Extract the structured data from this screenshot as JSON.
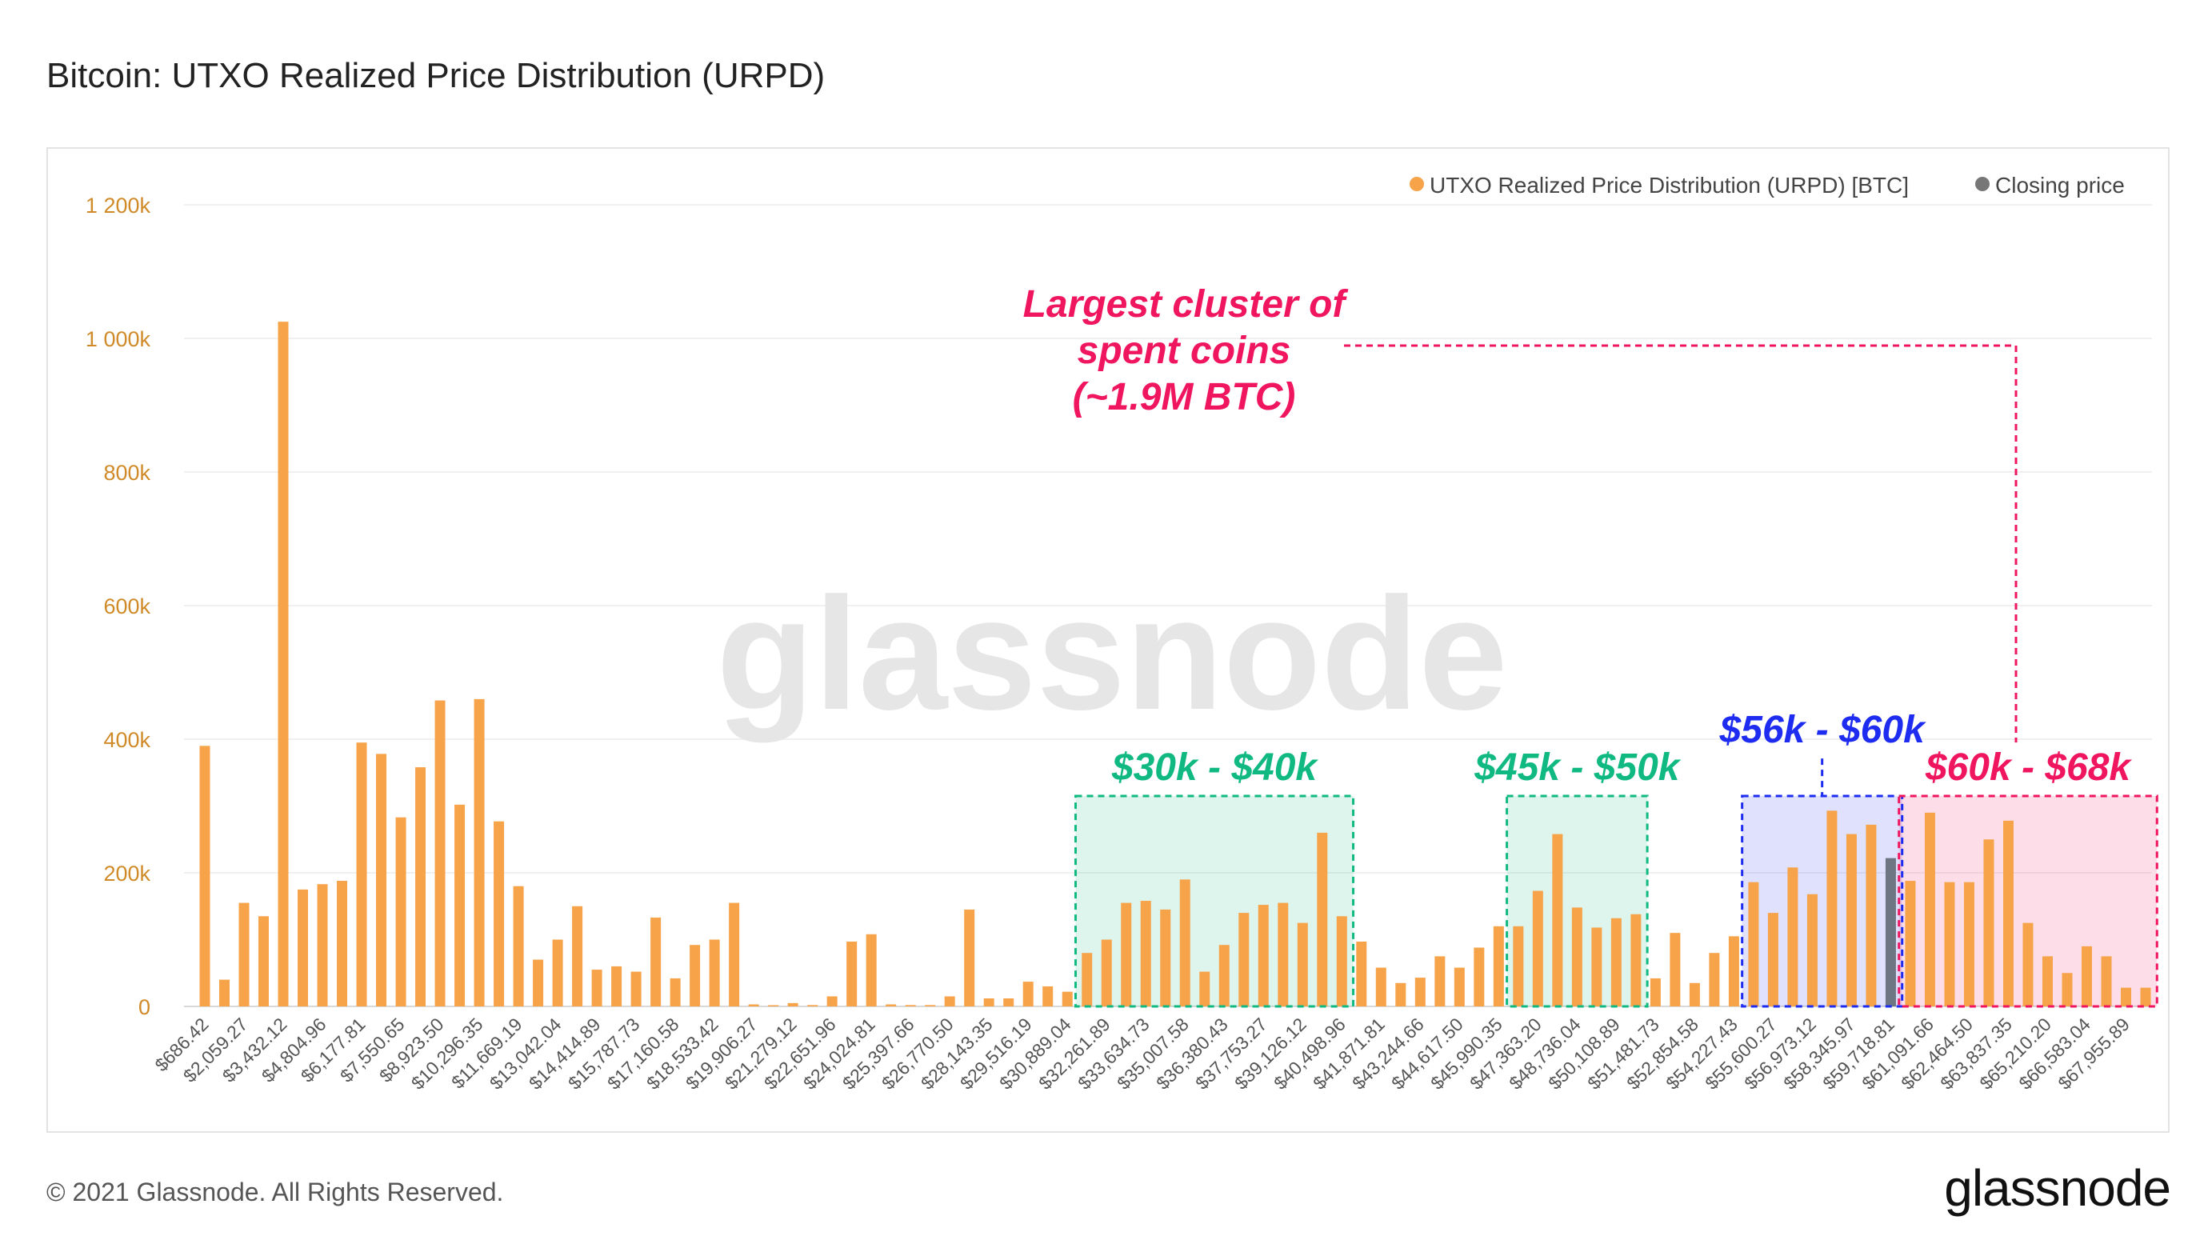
{
  "page": {
    "title": "Bitcoin: UTXO Realized Price Distribution (URPD)",
    "copyright": "© 2021 Glassnode. All Rights Reserved.",
    "logo_text": "glassnode",
    "watermark_text": "glassnode"
  },
  "colors": {
    "bar": "#f7a34a",
    "closing": "#6e7583",
    "axis_text": "#d08a28",
    "green": "#10b981",
    "blue": "#1d2cf0",
    "pink": "#f0155f"
  },
  "chart_data": {
    "type": "bar",
    "title": "Bitcoin: UTXO Realized Price Distribution (URPD)",
    "xlabel": "",
    "ylabel": "",
    "ylim": [
      0,
      1200000
    ],
    "y_ticks": [
      {
        "value": 0,
        "label": "0"
      },
      {
        "value": 200000,
        "label": "200k"
      },
      {
        "value": 400000,
        "label": "400k"
      },
      {
        "value": 600000,
        "label": "600k"
      },
      {
        "value": 800000,
        "label": "800k"
      },
      {
        "value": 1000000,
        "label": "1 000k"
      },
      {
        "value": 1200000,
        "label": "1 200k"
      }
    ],
    "grid": true,
    "legend": {
      "position": "top-right",
      "entries": [
        {
          "label": "UTXO Realized Price Distribution (URPD) [BTC]",
          "color": "#f7a34a"
        },
        {
          "label": "Closing price",
          "color": "#777777"
        }
      ]
    },
    "bucket_start": 686.42,
    "bucket_width": 686.43,
    "closing_index": 86,
    "x_tick_labels": [
      "$686.42",
      "$2,059.27",
      "$3,432.12",
      "$4,804.96",
      "$6,177.81",
      "$7,550.65",
      "$8,923.50",
      "$10,296.35",
      "$11,669.19",
      "$13,042.04",
      "$14,414.89",
      "$15,787.73",
      "$17,160.58",
      "$18,533.42",
      "$19,906.27",
      "$21,279.12",
      "$22,651.96",
      "$24,024.81",
      "$25,397.66",
      "$26,770.50",
      "$28,143.35",
      "$29,516.19",
      "$30,889.04",
      "$32,261.89",
      "$33,634.73",
      "$35,007.58",
      "$36,380.43",
      "$37,753.27",
      "$39,126.12",
      "$40,498.96",
      "$41,871.81",
      "$43,244.66",
      "$44,617.50",
      "$45,990.35",
      "$47,363.20",
      "$48,736.04",
      "$50,108.89",
      "$51,481.73",
      "$52,854.58",
      "$54,227.43",
      "$55,600.27",
      "$56,973.12",
      "$58,345.97",
      "$59,718.81",
      "$61,091.66",
      "$62,464.50",
      "$63,837.35",
      "$65,210.20",
      "$66,583.04",
      "$67,955.89"
    ],
    "series": [
      {
        "name": "UTXO Realized Price Distribution (URPD) [BTC]",
        "values": [
          390000,
          40000,
          155000,
          135000,
          1025000,
          175000,
          183000,
          188000,
          395000,
          378000,
          283000,
          358000,
          458000,
          302000,
          460000,
          277000,
          180000,
          70000,
          100000,
          150000,
          55000,
          60000,
          52000,
          133000,
          42000,
          92000,
          100000,
          155000,
          3000,
          1000,
          5000,
          2000,
          15000,
          97000,
          108000,
          3000,
          2000,
          2000,
          15000,
          145000,
          12000,
          12000,
          37000,
          30000,
          22000,
          80000,
          100000,
          155000,
          158000,
          145000,
          190000,
          52000,
          92000,
          140000,
          152000,
          155000,
          125000,
          260000,
          135000,
          97000,
          58000,
          35000,
          43000,
          75000,
          58000,
          88000,
          120000,
          120000,
          173000,
          258000,
          148000,
          118000,
          132000,
          138000,
          42000,
          110000,
          35000,
          80000,
          105000,
          186000,
          140000,
          208000,
          168000,
          293000,
          258000,
          272000,
          222000,
          188000,
          290000,
          186000,
          186000,
          250000,
          278000,
          125000,
          75000,
          50000,
          90000,
          75000,
          28000,
          28000
        ]
      }
    ],
    "annotations": [
      {
        "id": "range-30-40",
        "text": "$30k - $40k",
        "color": "#10b981",
        "start_bucket": 45,
        "end_bucket": 58
      },
      {
        "id": "range-45-50",
        "text": "$45k - $50k",
        "color": "#10b981",
        "start_bucket": 67,
        "end_bucket": 73
      },
      {
        "id": "range-56-60",
        "text": "$56k - $60k",
        "color": "#1d2cf0",
        "start_bucket": 79,
        "end_bucket": 86
      },
      {
        "id": "range-60-68",
        "text": "$60k - $68k",
        "color": "#f0155f",
        "start_bucket": 87,
        "end_bucket": 99
      },
      {
        "id": "largest-cluster",
        "text_lines": [
          "Largest cluster of",
          "spent coins",
          "(~1.9M BTC)"
        ],
        "color": "#f0155f"
      }
    ]
  }
}
